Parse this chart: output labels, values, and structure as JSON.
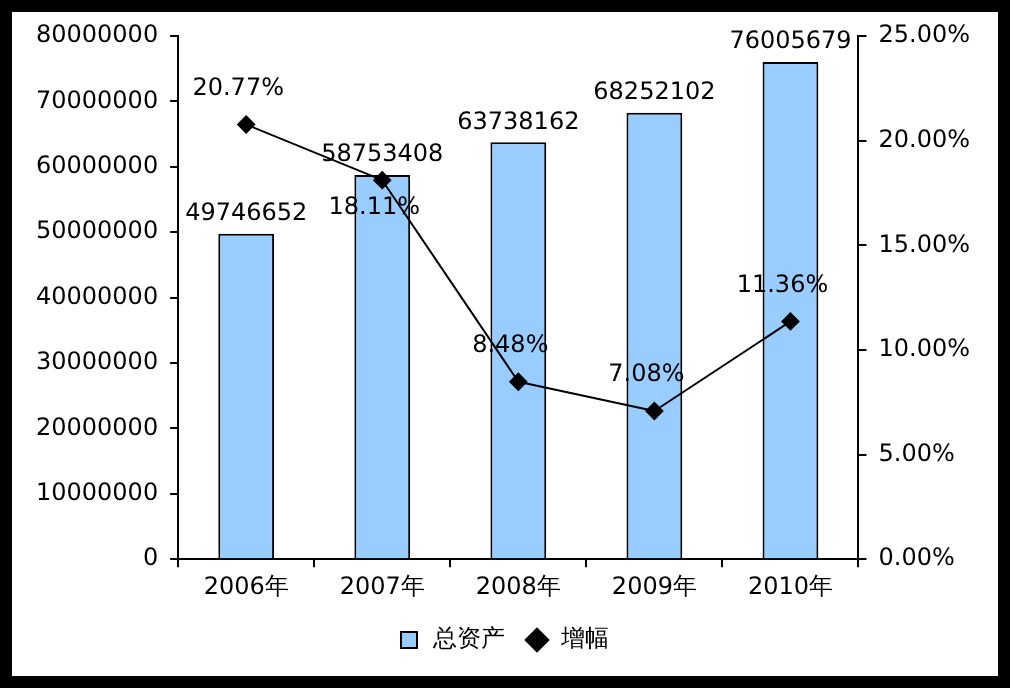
{
  "chart_data": {
    "type": "bar",
    "categories": [
      "2006年",
      "2007年",
      "2008年",
      "2009年",
      "2010年"
    ],
    "series": [
      {
        "name": "总资产",
        "color": "#99ccff",
        "values": [
          49746652,
          58753408,
          63738162,
          68252102,
          76005679
        ],
        "value_labels": [
          "49746652",
          "58753408",
          "63738162",
          "68252102",
          "76005679"
        ]
      },
      {
        "name": "增幅",
        "type": "line",
        "axis": "y2",
        "color": "#000000",
        "marker": "diamond",
        "values": [
          20.77,
          18.11,
          8.48,
          7.08,
          11.36
        ],
        "value_labels": [
          "20.77%",
          "18.11%",
          "8.48%",
          "7.08%",
          "11.36%"
        ]
      }
    ],
    "ylim": [
      0,
      80000000
    ],
    "yticks": [
      0,
      10000000,
      20000000,
      30000000,
      40000000,
      50000000,
      60000000,
      70000000,
      80000000
    ],
    "y2lim": [
      0,
      25
    ],
    "y2ticks": [
      {
        "value": 0,
        "label": "0.00%"
      },
      {
        "value": 5,
        "label": "5.00%"
      },
      {
        "value": 10,
        "label": "10.00%"
      },
      {
        "value": 15,
        "label": "15.00%"
      },
      {
        "value": 20,
        "label": "20.00%"
      },
      {
        "value": 25,
        "label": "25.00%"
      }
    ],
    "grid": false,
    "legend": "bottom"
  }
}
